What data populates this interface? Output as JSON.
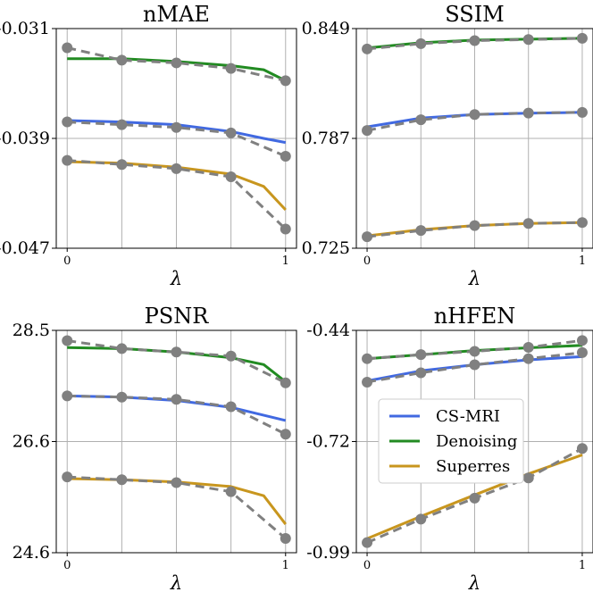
{
  "chart_data": [
    {
      "type": "line",
      "title": "nMAE",
      "xlabel": "λ",
      "xticks": [
        "0",
        "1"
      ],
      "yticks": [
        "-0.031",
        "-0.039",
        "-0.047"
      ],
      "ylim": [
        -0.047,
        -0.031
      ],
      "xlim": [
        0,
        1
      ],
      "x_points": [
        0,
        0.25,
        0.5,
        0.75,
        1
      ],
      "series": [
        {
          "name": "CS-MRI",
          "color": "#4169e1",
          "style": "solid",
          "x": [
            0,
            0.25,
            0.5,
            0.75,
            0.9,
            1
          ],
          "values": [
            -0.0377,
            -0.0378,
            -0.038,
            -0.0385,
            -0.039,
            -0.0393
          ]
        },
        {
          "name": "Denoising",
          "color": "#228b22",
          "style": "solid",
          "x": [
            0,
            0.25,
            0.5,
            0.75,
            0.9,
            1
          ],
          "values": [
            -0.0332,
            -0.0332,
            -0.0334,
            -0.0337,
            -0.034,
            -0.0348
          ]
        },
        {
          "name": "Superres",
          "color": "#c8961e",
          "style": "solid",
          "x": [
            0,
            0.25,
            0.5,
            0.75,
            0.9,
            1
          ],
          "values": [
            -0.0407,
            -0.0408,
            -0.0411,
            -0.0416,
            -0.0425,
            -0.0442
          ]
        },
        {
          "name": "",
          "color": "#808080",
          "style": "dashed-markers",
          "x": [
            0,
            0.25,
            0.5,
            0.75,
            1
          ],
          "values": [
            -0.0324,
            -0.0333,
            -0.0335,
            -0.0339,
            -0.0348
          ]
        },
        {
          "name": "",
          "color": "#808080",
          "style": "dashed-markers",
          "x": [
            0,
            0.25,
            0.5,
            0.75,
            1
          ],
          "values": [
            -0.0378,
            -0.038,
            -0.0382,
            -0.0386,
            -0.0403
          ]
        },
        {
          "name": "",
          "color": "#808080",
          "style": "dashed-markers",
          "x": [
            0,
            0.25,
            0.5,
            0.75,
            1
          ],
          "values": [
            -0.0406,
            -0.0409,
            -0.0412,
            -0.0418,
            -0.0456
          ]
        }
      ],
      "grid": true
    },
    {
      "type": "line",
      "title": "SSIM",
      "xlabel": "λ",
      "xticks": [
        "0",
        "1"
      ],
      "yticks": [
        "0.849",
        "0.787",
        "0.725"
      ],
      "ylim": [
        0.725,
        0.849
      ],
      "xlim": [
        0,
        1
      ],
      "x_points": [
        0,
        0.25,
        0.5,
        0.75,
        1
      ],
      "series": [
        {
          "name": "CS-MRI",
          "color": "#4169e1",
          "style": "solid",
          "x": [
            0,
            0.25,
            0.5,
            0.75,
            1
          ],
          "values": [
            0.7935,
            0.7985,
            0.8005,
            0.8012,
            0.8017
          ]
        },
        {
          "name": "Denoising",
          "color": "#228b22",
          "style": "solid",
          "x": [
            0,
            0.25,
            0.5,
            0.75,
            1
          ],
          "values": [
            0.838,
            0.841,
            0.8425,
            0.843,
            0.8435
          ]
        },
        {
          "name": "Superres",
          "color": "#c8961e",
          "style": "solid",
          "x": [
            0,
            0.25,
            0.5,
            0.75,
            1
          ],
          "values": [
            0.732,
            0.7355,
            0.7378,
            0.739,
            0.7395
          ]
        },
        {
          "name": "",
          "color": "#808080",
          "style": "dashed-markers",
          "x": [
            0,
            0.25,
            0.5,
            0.75,
            1
          ],
          "values": [
            0.7915,
            0.7975,
            0.8005,
            0.8013,
            0.8017
          ]
        },
        {
          "name": "",
          "color": "#808080",
          "style": "dashed-markers",
          "x": [
            0,
            0.25,
            0.5,
            0.75,
            1
          ],
          "values": [
            0.8375,
            0.8405,
            0.8422,
            0.8428,
            0.8435
          ]
        },
        {
          "name": "",
          "color": "#808080",
          "style": "dashed-markers",
          "x": [
            0,
            0.25,
            0.5,
            0.75,
            1
          ],
          "values": [
            0.7315,
            0.735,
            0.7378,
            0.739,
            0.7395
          ]
        }
      ],
      "grid": true
    },
    {
      "type": "line",
      "title": "PSNR",
      "xlabel": "λ",
      "xticks": [
        "0",
        "1"
      ],
      "yticks": [
        "28.5",
        "26.6",
        "24.6"
      ],
      "ylim": [
        24.6,
        28.5
      ],
      "xlim": [
        0,
        1
      ],
      "x_points": [
        0,
        0.25,
        0.5,
        0.75,
        1
      ],
      "series": [
        {
          "name": "CS-MRI",
          "color": "#4169e1",
          "style": "solid",
          "x": [
            0,
            0.25,
            0.5,
            0.75,
            1
          ],
          "values": [
            27.35,
            27.33,
            27.27,
            27.15,
            26.92
          ]
        },
        {
          "name": "Denoising",
          "color": "#228b22",
          "style": "solid",
          "x": [
            0,
            0.25,
            0.5,
            0.75,
            0.9,
            1
          ],
          "values": [
            28.2,
            28.18,
            28.12,
            28.02,
            27.9,
            27.6
          ]
        },
        {
          "name": "Superres",
          "color": "#c8961e",
          "style": "solid",
          "x": [
            0,
            0.25,
            0.5,
            0.75,
            0.9,
            1
          ],
          "values": [
            25.9,
            25.88,
            25.84,
            25.76,
            25.6,
            25.1
          ]
        },
        {
          "name": "",
          "color": "#808080",
          "style": "dashed-markers",
          "x": [
            0,
            0.25,
            0.5,
            0.75,
            1
          ],
          "values": [
            28.32,
            28.18,
            28.12,
            28.05,
            27.58
          ]
        },
        {
          "name": "",
          "color": "#808080",
          "style": "dashed-markers",
          "x": [
            0,
            0.25,
            0.5,
            0.75,
            1
          ],
          "values": [
            27.35,
            27.33,
            27.29,
            27.16,
            26.68
          ]
        },
        {
          "name": "",
          "color": "#808080",
          "style": "dashed-markers",
          "x": [
            0,
            0.25,
            0.5,
            0.75,
            1
          ],
          "values": [
            25.93,
            25.88,
            25.83,
            25.67,
            24.85
          ]
        }
      ],
      "grid": true
    },
    {
      "type": "line",
      "title": "nHFEN",
      "xlabel": "λ",
      "xticks": [
        "0",
        "1"
      ],
      "yticks": [
        "-0.44",
        "-0.72",
        "-0.99"
      ],
      "ylim": [
        -0.99,
        -0.44
      ],
      "xlim": [
        0,
        1
      ],
      "x_points": [
        0,
        0.25,
        0.5,
        0.75,
        1
      ],
      "series": [
        {
          "name": "CS-MRI",
          "color": "#4169e1",
          "style": "solid",
          "x": [
            0,
            0.25,
            0.5,
            0.75,
            1
          ],
          "values": [
            -0.565,
            -0.54,
            -0.525,
            -0.513,
            -0.505
          ]
        },
        {
          "name": "Denoising",
          "color": "#228b22",
          "style": "solid",
          "x": [
            0,
            0.25,
            0.5,
            0.75,
            1
          ],
          "values": [
            -0.51,
            -0.5,
            -0.49,
            -0.483,
            -0.477
          ]
        },
        {
          "name": "Superres",
          "color": "#c8961e",
          "style": "solid",
          "x": [
            0,
            0.25,
            0.5,
            0.75,
            1
          ],
          "values": [
            -0.955,
            -0.9,
            -0.847,
            -0.795,
            -0.748
          ]
        },
        {
          "name": "",
          "color": "#808080",
          "style": "dashed-markers",
          "x": [
            0,
            0.25,
            0.5,
            0.75,
            1
          ],
          "values": [
            -0.568,
            -0.545,
            -0.525,
            -0.51,
            -0.495
          ]
        },
        {
          "name": "",
          "color": "#808080",
          "style": "dashed-markers",
          "x": [
            0,
            0.25,
            0.5,
            0.75,
            1
          ],
          "values": [
            -0.51,
            -0.5,
            -0.492,
            -0.482,
            -0.465
          ]
        },
        {
          "name": "",
          "color": "#808080",
          "style": "dashed-markers",
          "x": [
            0,
            0.25,
            0.5,
            0.75,
            1
          ],
          "values": [
            -0.965,
            -0.907,
            -0.855,
            -0.805,
            -0.732
          ]
        }
      ],
      "grid": true
    }
  ],
  "legend": {
    "placement": "inside nHFEN panel, middle",
    "entries": [
      {
        "label": "CS-MRI",
        "color": "#4169e1"
      },
      {
        "label": "Denoising",
        "color": "#228b22"
      },
      {
        "label": "Superres",
        "color": "#c8961e"
      }
    ]
  }
}
